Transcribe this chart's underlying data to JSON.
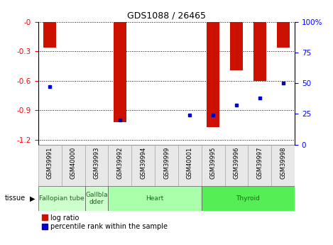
{
  "title": "GDS1088 / 26465",
  "samples": [
    "GSM39991",
    "GSM40000",
    "GSM39993",
    "GSM39992",
    "GSM39994",
    "GSM39999",
    "GSM40001",
    "GSM39995",
    "GSM39996",
    "GSM39997",
    "GSM39998"
  ],
  "log_ratios": [
    -0.26,
    0.0,
    0.0,
    -1.02,
    0.0,
    0.0,
    0.0,
    -1.07,
    -0.49,
    -0.6,
    -0.26
  ],
  "percentile_ranks": [
    47,
    0,
    0,
    20,
    0,
    0,
    24,
    24,
    32,
    38,
    50
  ],
  "tissue_groups": [
    {
      "name": "Fallopian tube",
      "start": 0,
      "end": 1,
      "color": "#ccffcc"
    },
    {
      "name": "Gallbla\ndder",
      "start": 2,
      "end": 2,
      "color": "#ccffcc"
    },
    {
      "name": "Heart",
      "start": 3,
      "end": 6,
      "color": "#aaffaa"
    },
    {
      "name": "Thyroid",
      "start": 7,
      "end": 10,
      "color": "#55ee55"
    }
  ],
  "ylim_left": [
    -1.25,
    0.0
  ],
  "ylim_right": [
    0,
    100
  ],
  "yticks_left": [
    0.0,
    -0.3,
    -0.6,
    -0.9,
    -1.2
  ],
  "yticks_right": [
    0,
    25,
    50,
    75,
    100
  ],
  "ytick_labels_left": [
    "-0",
    "-0.3",
    "-0.6",
    "-0.9",
    "-1.2"
  ],
  "ytick_labels_right": [
    "0",
    "25",
    "50",
    "75",
    "100%"
  ],
  "bar_color": "#cc1100",
  "dot_color": "#0000cc",
  "background_color": "#ffffff",
  "legend_labels": [
    "log ratio",
    "percentile rank within the sample"
  ]
}
